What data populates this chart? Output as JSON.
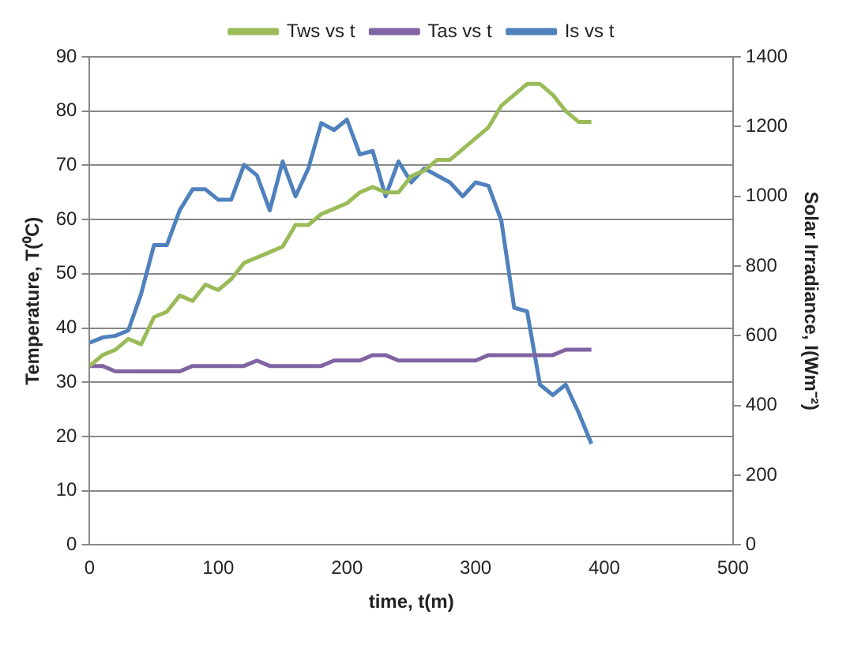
{
  "chart_data": {
    "type": "line",
    "xlabel": "time, t(m)",
    "ylabel": "Temperature, T(⁰C)",
    "y2label": "Solar Irradiance, I(Wm⁻²)",
    "x": [
      0,
      10,
      20,
      30,
      40,
      50,
      60,
      70,
      80,
      90,
      100,
      110,
      120,
      130,
      140,
      150,
      160,
      170,
      180,
      190,
      200,
      210,
      220,
      230,
      240,
      250,
      260,
      270,
      280,
      290,
      300,
      310,
      320,
      330,
      340,
      350,
      360,
      370,
      380,
      390
    ],
    "xlim": [
      0,
      500
    ],
    "xticks": [
      0,
      100,
      200,
      300,
      400,
      500
    ],
    "ylim": [
      0,
      90
    ],
    "yticks": [
      0,
      10,
      20,
      30,
      40,
      50,
      60,
      70,
      80,
      90
    ],
    "y2lim": [
      0,
      1400
    ],
    "y2ticks": [
      0,
      200,
      400,
      600,
      800,
      1000,
      1200,
      1400
    ],
    "grid": "y",
    "legend": "top",
    "marker": "none",
    "line_style": "solid",
    "series": [
      {
        "name": "Tws vs t",
        "color": "#9bbb59",
        "values": [
          33,
          35,
          36,
          38,
          37,
          42,
          43,
          46,
          45,
          48,
          47,
          49,
          52,
          53,
          54,
          55,
          59,
          59,
          61,
          62,
          63,
          65,
          66,
          65,
          65,
          68,
          69,
          71,
          71,
          73,
          75,
          77,
          81,
          83,
          85,
          85,
          83,
          80,
          78,
          78
        ]
      },
      {
        "name": "Tas vs t",
        "color": "#8064a2",
        "values": [
          33,
          33,
          32,
          32,
          32,
          32,
          32,
          32,
          33,
          33,
          33,
          33,
          33,
          34,
          33,
          33,
          33,
          33,
          33,
          34,
          34,
          34,
          35,
          35,
          34,
          34,
          34,
          34,
          34,
          34,
          34,
          35,
          35,
          35,
          35,
          35,
          35,
          36,
          36,
          36
        ]
      },
      {
        "name": "Is vs t",
        "color": "#4f81bd",
        "axis": "y2",
        "values": [
          580,
          595,
          600,
          615,
          720,
          860,
          860,
          960,
          1020,
          1020,
          990,
          990,
          1090,
          1060,
          960,
          1100,
          1000,
          1080,
          1210,
          1190,
          1220,
          1120,
          1130,
          1000,
          1100,
          1040,
          1080,
          1060,
          1040,
          1000,
          1040,
          1030,
          930,
          680,
          670,
          460,
          430,
          460,
          380,
          290
        ]
      }
    ]
  }
}
